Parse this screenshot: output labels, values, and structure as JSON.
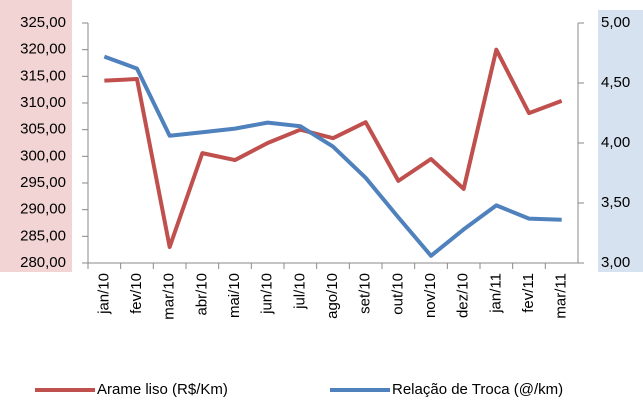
{
  "chart_data": {
    "type": "line",
    "categories": [
      "jan/10",
      "fev/10",
      "mar/10",
      "abr/10",
      "mai/10",
      "jun/10",
      "jul/10",
      "ago/10",
      "set/10",
      "out/10",
      "nov/10",
      "dez/10",
      "jan/11",
      "fev/11",
      "mar/11"
    ],
    "series": [
      {
        "name": "Arame liso (R$/Km)",
        "color": "#c0504d",
        "values": [
          314.2,
          314.5,
          283,
          300.6,
          299.3,
          302.5,
          305,
          303.4,
          306.4,
          295.4,
          299.5,
          293.9,
          320,
          308.1,
          310.4
        ]
      },
      {
        "name": "Relação  de Troca (@/km)",
        "color": "#4f81bd",
        "axis": "y2",
        "values": [
          4.72,
          4.62,
          4.06,
          4.09,
          4.12,
          4.17,
          4.14,
          3.97,
          3.71,
          3.38,
          3.06,
          3.28,
          3.48,
          3.37,
          3.36
        ]
      }
    ],
    "ylim": [
      280,
      325
    ],
    "yticks": [
      {
        "value": 280,
        "label": "280,00"
      },
      {
        "value": 285,
        "label": "285,00"
      },
      {
        "value": 290,
        "label": "290,00"
      },
      {
        "value": 295,
        "label": "295,00"
      },
      {
        "value": 300,
        "label": "300,00"
      },
      {
        "value": 305,
        "label": "305,00"
      },
      {
        "value": 310,
        "label": "310,00"
      },
      {
        "value": 315,
        "label": "315,00"
      },
      {
        "value": 320,
        "label": "320,00"
      },
      {
        "value": 325,
        "label": "325,00"
      }
    ],
    "y2lim": [
      3,
      5
    ],
    "y2ticks": [
      {
        "value": 3,
        "label": "3,00"
      },
      {
        "value": 3.5,
        "label": "3,50"
      },
      {
        "value": 4,
        "label": "4,00"
      },
      {
        "value": 4.5,
        "label": "4,50"
      },
      {
        "value": 5,
        "label": "5,00"
      }
    ],
    "legend": "bottom"
  }
}
